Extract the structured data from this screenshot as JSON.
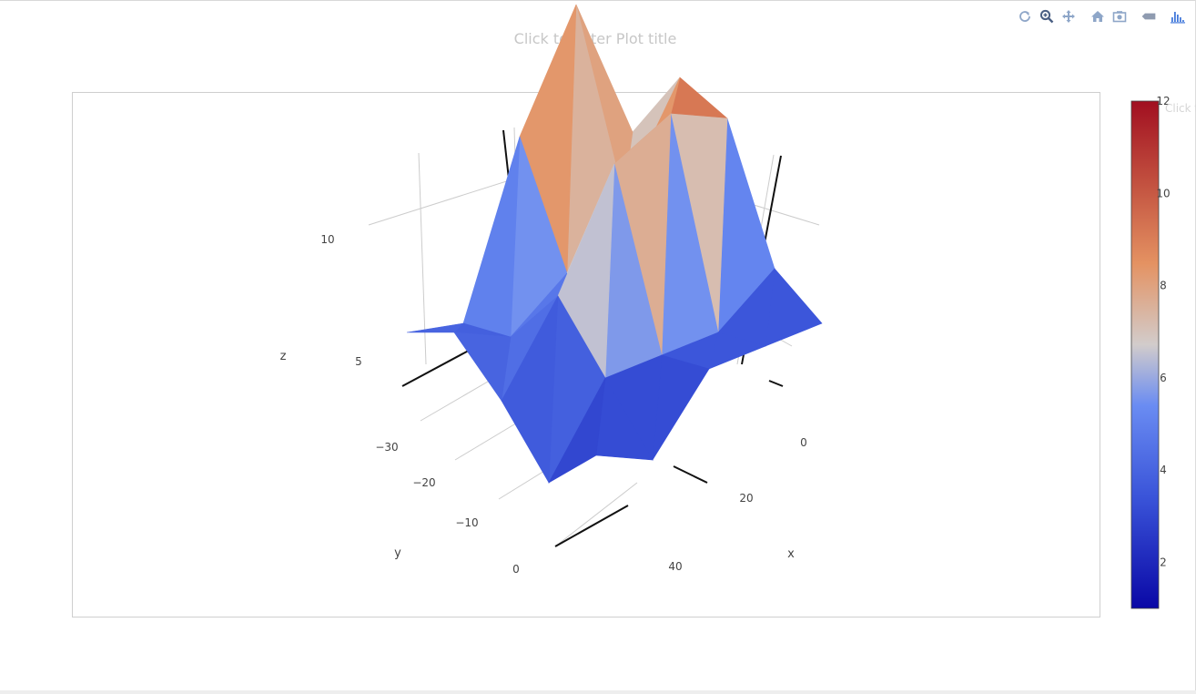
{
  "plot_title_placeholder": "Click to enter Plot title",
  "modebar": [
    {
      "name": "reset-camera-icon",
      "title": "Reset camera"
    },
    {
      "name": "zoom-icon",
      "title": "Zoom"
    },
    {
      "name": "pan-icon",
      "title": "Pan"
    },
    {
      "name": "home-icon",
      "title": "Reset"
    },
    {
      "name": "camera-icon",
      "title": "Download plot"
    },
    {
      "name": "tag-icon",
      "title": "Toggle hover labels"
    },
    {
      "name": "plotly-logo-icon",
      "title": "Produced with Plotly"
    }
  ],
  "chart_data": {
    "type": "surface",
    "colorscale": "RdBu-reversed",
    "colors": {
      "low": "#0a08a6",
      "mid_low": "#5f84f0",
      "mid": "#d2cccb",
      "mid_high": "#e49262",
      "high": "#a10f20"
    },
    "cmin": 1.0,
    "cmax": 12.0,
    "colorbar_ticks": [
      "2",
      "4",
      "6",
      "8",
      "10",
      "12"
    ],
    "colorbar_title": "Click to enter",
    "axes": {
      "x": {
        "title": "x",
        "ticks": [
          "0",
          "20",
          "40"
        ]
      },
      "y": {
        "title": "y",
        "ticks": [
          "−30",
          "−20",
          "−10",
          "0"
        ]
      },
      "z": {
        "title": "z",
        "ticks": [
          "5",
          "10"
        ]
      }
    },
    "surface": {
      "x": [
        0,
        10,
        20,
        30,
        40
      ],
      "y": [
        -35,
        -25,
        -15,
        -5,
        0
      ],
      "z": [
        [
          3.5,
          2.0,
          4.0,
          3.5,
          3.0
        ],
        [
          1.5,
          4.0,
          3.5,
          3.0,
          4.0
        ],
        [
          3.5,
          6.0,
          9.5,
          10.0,
          8.5
        ],
        [
          5.0,
          3.5,
          4.5,
          6.0,
          9.0
        ],
        [
          4.0,
          3.0,
          8.5,
          12.0,
          6.0
        ]
      ]
    }
  }
}
